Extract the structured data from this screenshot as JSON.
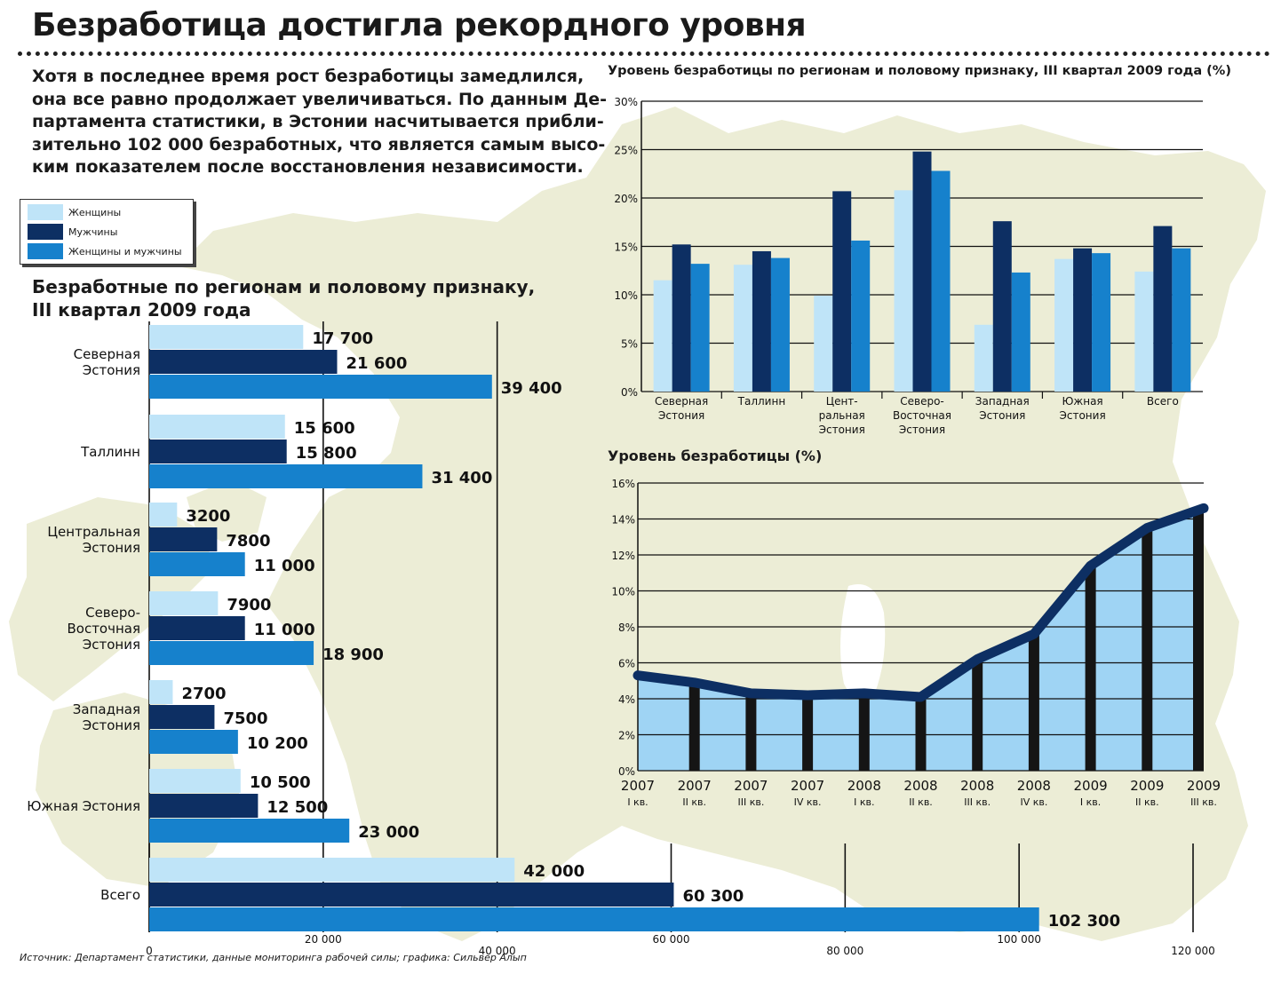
{
  "title": "Безработица достигла рекордного уровня",
  "intro_lines": [
    "Хотя в последнее время рост безработицы замедлился,",
    "она все равно продолжает увеличиваться. По данным Де-",
    "партамента статистики, в Эстонии насчитывается прибли-",
    "зительно 102 000 безработных, что является самым высо-",
    "ким показателем после восстановления независимости."
  ],
  "legend": [
    {
      "label": "Женщины",
      "color": "#bfe4f8"
    },
    {
      "label": "Мужчины",
      "color": "#0d2f63"
    },
    {
      "label": "Женщины и мужчины",
      "color": "#1681cc"
    }
  ],
  "source": "Источник: Департамент статистики, данные мониторинга рабочей силы; графика: Сильвер Алып",
  "chart_data": [
    {
      "type": "bar",
      "orientation": "horizontal",
      "title_lines": [
        "Безработные по регионам и половому признаку,",
        "III квартал 2009 года"
      ],
      "categories": [
        "Северная\nЭстония",
        "Таллинн",
        "Центральная\nЭстония",
        "Северо-\nВосточная\nЭстония",
        "Западная\nЭстония",
        "Южная Эстония",
        "Всего"
      ],
      "series": [
        {
          "name": "Женщины",
          "values": [
            17700,
            15600,
            3200,
            7900,
            2700,
            10500,
            42000
          ]
        },
        {
          "name": "Мужчины",
          "values": [
            21600,
            15800,
            7800,
            11000,
            7500,
            12500,
            60300
          ]
        },
        {
          "name": "Женщины и мужчины",
          "values": [
            39400,
            31400,
            11000,
            18900,
            10200,
            23000,
            102300
          ]
        }
      ],
      "value_labels": [
        [
          "17 700",
          "21 600",
          "39 400"
        ],
        [
          "15 600",
          "15 800",
          "31 400"
        ],
        [
          "3200",
          "7800",
          "11 000"
        ],
        [
          "7900",
          "11 000",
          "18 900"
        ],
        [
          "2700",
          "7500",
          "10 200"
        ],
        [
          "10 500",
          "12 500",
          "23 000"
        ],
        [
          "42 000",
          "60 300",
          "102 300"
        ]
      ],
      "xlim": [
        0,
        120000
      ],
      "xticks": [
        0,
        20000,
        40000,
        60000,
        80000,
        100000,
        120000
      ],
      "xtick_labels": [
        "0",
        "20 000",
        "40 000",
        "60 000",
        "80 000",
        "100 000",
        "120 000"
      ],
      "grid": true
    },
    {
      "type": "bar",
      "title": "Уровень безработицы по регионам и половому признаку, III квартал 2009 года (%)",
      "categories": [
        "Северная\nЭстония",
        "Таллинн",
        "Цент-\nральная\nЭстония",
        "Северо-\nВосточная\nЭстония",
        "Западная\nЭстония",
        "Южная\nЭстония",
        "Всего"
      ],
      "series": [
        {
          "name": "Женщины",
          "values": [
            11.5,
            13.1,
            9.9,
            20.8,
            6.9,
            13.7,
            12.4
          ]
        },
        {
          "name": "Мужчины",
          "values": [
            15.2,
            14.5,
            20.7,
            24.8,
            17.6,
            14.8,
            17.1
          ]
        },
        {
          "name": "Женщины и мужчины",
          "values": [
            13.2,
            13.8,
            15.6,
            22.8,
            12.3,
            14.3,
            14.8
          ]
        }
      ],
      "ylim": [
        0,
        30
      ],
      "yticks": [
        0,
        5,
        10,
        15,
        20,
        25,
        30
      ],
      "ytick_labels": [
        "0%",
        "5%",
        "10%",
        "15%",
        "20%",
        "25%",
        "30%"
      ],
      "grid": true
    },
    {
      "type": "area",
      "title": "Уровень безработицы (%)",
      "x": [
        "2007\nI кв.",
        "2007\nII кв.",
        "2007\nIII кв.",
        "2007\nIV кв.",
        "2008\nI кв.",
        "2008\nII кв.",
        "2008\nIII кв.",
        "2008\nIV кв.",
        "2009\nI кв.",
        "2009\nII кв.",
        "2009\nIII кв."
      ],
      "values": [
        5.3,
        4.9,
        4.3,
        4.2,
        4.3,
        4.1,
        6.2,
        7.6,
        11.4,
        13.5,
        14.6
      ],
      "ylim": [
        0,
        16
      ],
      "yticks": [
        0,
        2,
        4,
        6,
        8,
        10,
        12,
        14,
        16
      ],
      "ytick_labels": [
        "0%",
        "2%",
        "4%",
        "6%",
        "8%",
        "10%",
        "12%",
        "14%",
        "16%"
      ],
      "grid": true
    }
  ]
}
